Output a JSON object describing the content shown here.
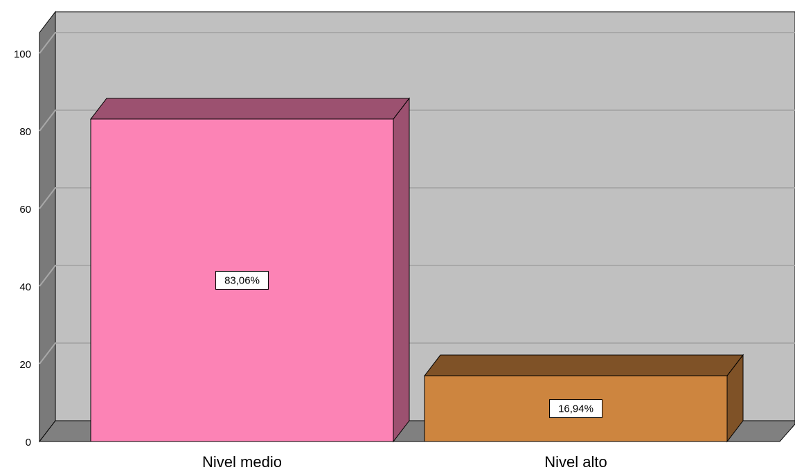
{
  "chart_data": {
    "type": "bar3d",
    "categories": [
      "Nivel medio",
      "Nivel alto"
    ],
    "values": [
      83.06,
      16.94
    ],
    "value_labels": [
      "83,06%",
      "16,94%"
    ],
    "colors": [
      "#fc83b5",
      "#cd853f"
    ],
    "ylim": [
      0,
      100
    ],
    "yticks": [
      0,
      20,
      40,
      60,
      80,
      100
    ],
    "grid": true
  }
}
